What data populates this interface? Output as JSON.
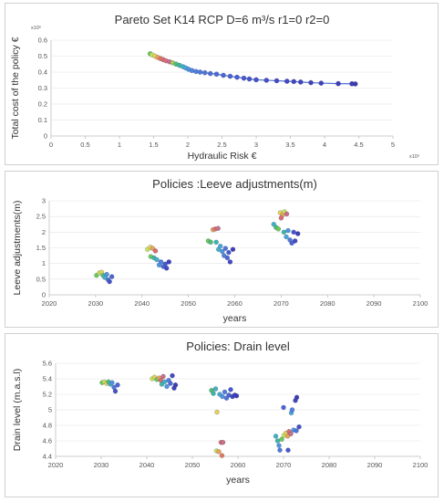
{
  "chart_data": [
    {
      "type": "scatter",
      "title": "Pareto Set K14 RCP D=6 m³/s r1=0 r2=0",
      "xlabel": "Hydraulic Risk €",
      "ylabel": "Total cost of the policy  €",
      "x_multiplier": "x10⁶",
      "y_multiplier": "x10⁶",
      "xlim": [
        0,
        5
      ],
      "ylim": [
        0,
        0.6
      ],
      "xticks": [
        "0",
        "0.5",
        "1",
        "1.5",
        "2",
        "2.5",
        "3",
        "3.5",
        "4",
        "4.5",
        "5"
      ],
      "yticks": [
        "0",
        "0.1",
        "0.2",
        "0.3",
        "0.4",
        "0.5",
        "0.6"
      ],
      "line_color": "#4a6fd6",
      "points": [
        {
          "x": 1.45,
          "y": 0.515,
          "c": "#6acb5a"
        },
        {
          "x": 1.48,
          "y": 0.508,
          "c": "#c6e35a"
        },
        {
          "x": 1.52,
          "y": 0.5,
          "c": "#e3d35a"
        },
        {
          "x": 1.56,
          "y": 0.492,
          "c": "#e8a358"
        },
        {
          "x": 1.6,
          "y": 0.485,
          "c": "#e07a5a"
        },
        {
          "x": 1.64,
          "y": 0.478,
          "c": "#d96d70"
        },
        {
          "x": 1.68,
          "y": 0.471,
          "c": "#d8707e"
        },
        {
          "x": 1.73,
          "y": 0.465,
          "c": "#c96f86"
        },
        {
          "x": 1.78,
          "y": 0.458,
          "c": "#9fc95b"
        },
        {
          "x": 1.83,
          "y": 0.45,
          "c": "#4fbd76"
        },
        {
          "x": 1.88,
          "y": 0.442,
          "c": "#3fb6a5"
        },
        {
          "x": 1.93,
          "y": 0.434,
          "c": "#44b0c5"
        },
        {
          "x": 1.97,
          "y": 0.426,
          "c": "#49a6d6"
        },
        {
          "x": 2.01,
          "y": 0.418,
          "c": "#4d95dd"
        },
        {
          "x": 2.06,
          "y": 0.41,
          "c": "#4f87dc"
        },
        {
          "x": 2.12,
          "y": 0.404,
          "c": "#4f80da"
        },
        {
          "x": 2.18,
          "y": 0.4,
          "c": "#4f7ad8"
        },
        {
          "x": 2.25,
          "y": 0.396,
          "c": "#4e76d6"
        },
        {
          "x": 2.33,
          "y": 0.391,
          "c": "#4c6fd4"
        },
        {
          "x": 2.42,
          "y": 0.387,
          "c": "#4b6ad2"
        },
        {
          "x": 2.52,
          "y": 0.38,
          "c": "#4a66d0"
        },
        {
          "x": 2.62,
          "y": 0.374,
          "c": "#4962ce"
        },
        {
          "x": 2.72,
          "y": 0.368,
          "c": "#485ecc"
        },
        {
          "x": 2.82,
          "y": 0.362,
          "c": "#4759ca"
        },
        {
          "x": 2.9,
          "y": 0.357,
          "c": "#4655c8"
        },
        {
          "x": 3.0,
          "y": 0.352,
          "c": "#4652c6"
        },
        {
          "x": 3.15,
          "y": 0.349,
          "c": "#454fc4"
        },
        {
          "x": 3.3,
          "y": 0.346,
          "c": "#444cc2"
        },
        {
          "x": 3.45,
          "y": 0.343,
          "c": "#4349c0"
        },
        {
          "x": 3.55,
          "y": 0.341,
          "c": "#4246be"
        },
        {
          "x": 3.65,
          "y": 0.338,
          "c": "#4144bc"
        },
        {
          "x": 3.8,
          "y": 0.334,
          "c": "#4042ba"
        },
        {
          "x": 3.95,
          "y": 0.331,
          "c": "#3f40b8"
        },
        {
          "x": 4.2,
          "y": 0.328,
          "c": "#3e3eb6"
        },
        {
          "x": 4.4,
          "y": 0.327,
          "c": "#3d3cb4"
        },
        {
          "x": 4.45,
          "y": 0.326,
          "c": "#3c3ab2"
        }
      ]
    },
    {
      "type": "scatter",
      "title": "Policies :Leeve adjustments(m)",
      "xlabel": "years",
      "ylabel": "Leeve adjustments(m)",
      "xlim": [
        2020,
        2100
      ],
      "ylim": [
        0,
        3
      ],
      "xticks": [
        "2020",
        "2030",
        "2040",
        "2050",
        "2060",
        "2070",
        "2080",
        "2090",
        "2100"
      ],
      "yticks": [
        "0",
        "0.5",
        "1",
        "1.5",
        "2",
        "2.5",
        "3"
      ],
      "points": [
        {
          "x": 2030.2,
          "y": 0.62,
          "c": "#6acb5a"
        },
        {
          "x": 2030.8,
          "y": 0.7,
          "c": "#c6e35a"
        },
        {
          "x": 2031.3,
          "y": 0.72,
          "c": "#e3d35a"
        },
        {
          "x": 2031.6,
          "y": 0.62,
          "c": "#4fbd76"
        },
        {
          "x": 2032.0,
          "y": 0.55,
          "c": "#44b0c5"
        },
        {
          "x": 2032.4,
          "y": 0.65,
          "c": "#4d95dd"
        },
        {
          "x": 2032.7,
          "y": 0.48,
          "c": "#4f7ad8"
        },
        {
          "x": 2033.0,
          "y": 0.42,
          "c": "#4652c6"
        },
        {
          "x": 2033.5,
          "y": 0.58,
          "c": "#4a66d0"
        },
        {
          "x": 2041.2,
          "y": 1.45,
          "c": "#c6e35a"
        },
        {
          "x": 2041.8,
          "y": 1.52,
          "c": "#e3d35a"
        },
        {
          "x": 2042.3,
          "y": 1.48,
          "c": "#e8a358"
        },
        {
          "x": 2042.9,
          "y": 1.4,
          "c": "#d96d70"
        },
        {
          "x": 2041.9,
          "y": 1.22,
          "c": "#6acb5a"
        },
        {
          "x": 2042.6,
          "y": 1.18,
          "c": "#3fb6a5"
        },
        {
          "x": 2043.2,
          "y": 1.12,
          "c": "#44b0c5"
        },
        {
          "x": 2043.7,
          "y": 0.95,
          "c": "#4d95dd"
        },
        {
          "x": 2044.1,
          "y": 1.05,
          "c": "#4f80da"
        },
        {
          "x": 2044.6,
          "y": 0.9,
          "c": "#4b6ad2"
        },
        {
          "x": 2045.0,
          "y": 0.98,
          "c": "#4759ca"
        },
        {
          "x": 2045.3,
          "y": 0.85,
          "c": "#4349c0"
        },
        {
          "x": 2045.8,
          "y": 1.05,
          "c": "#3f40b8"
        },
        {
          "x": 2054.3,
          "y": 1.72,
          "c": "#6acb5a"
        },
        {
          "x": 2054.8,
          "y": 1.68,
          "c": "#4fbd76"
        },
        {
          "x": 2055.3,
          "y": 2.08,
          "c": "#e8a358"
        },
        {
          "x": 2055.8,
          "y": 2.1,
          "c": "#d96d70"
        },
        {
          "x": 2056.4,
          "y": 2.12,
          "c": "#c96f86"
        },
        {
          "x": 2056.0,
          "y": 1.68,
          "c": "#3fb6a5"
        },
        {
          "x": 2056.5,
          "y": 1.45,
          "c": "#44b0c5"
        },
        {
          "x": 2056.9,
          "y": 1.55,
          "c": "#49a6d6"
        },
        {
          "x": 2057.3,
          "y": 1.38,
          "c": "#4d95dd"
        },
        {
          "x": 2057.7,
          "y": 1.25,
          "c": "#4f80da"
        },
        {
          "x": 2058.0,
          "y": 1.48,
          "c": "#4e76d6"
        },
        {
          "x": 2058.4,
          "y": 1.18,
          "c": "#4a66d0"
        },
        {
          "x": 2058.7,
          "y": 1.35,
          "c": "#4759ca"
        },
        {
          "x": 2059.0,
          "y": 1.05,
          "c": "#4349c0"
        },
        {
          "x": 2059.6,
          "y": 1.45,
          "c": "#3e3eb6"
        },
        {
          "x": 2068.4,
          "y": 2.25,
          "c": "#44b0c5"
        },
        {
          "x": 2068.9,
          "y": 2.15,
          "c": "#4fbd76"
        },
        {
          "x": 2069.4,
          "y": 2.1,
          "c": "#6acb5a"
        },
        {
          "x": 2069.8,
          "y": 2.62,
          "c": "#e3d35a"
        },
        {
          "x": 2070.3,
          "y": 2.55,
          "c": "#e8a358"
        },
        {
          "x": 2070.0,
          "y": 2.45,
          "c": "#d96d70"
        },
        {
          "x": 2070.7,
          "y": 2.65,
          "c": "#c6e35a"
        },
        {
          "x": 2071.2,
          "y": 2.58,
          "c": "#c96f86"
        },
        {
          "x": 2070.6,
          "y": 2.0,
          "c": "#3fb6a5"
        },
        {
          "x": 2071.1,
          "y": 1.85,
          "c": "#49a6d6"
        },
        {
          "x": 2071.5,
          "y": 2.05,
          "c": "#4d95dd"
        },
        {
          "x": 2071.9,
          "y": 1.75,
          "c": "#4f7ad8"
        },
        {
          "x": 2072.3,
          "y": 1.65,
          "c": "#4a66d0"
        },
        {
          "x": 2072.7,
          "y": 2.0,
          "c": "#4759ca"
        },
        {
          "x": 2073.0,
          "y": 1.72,
          "c": "#4349c0"
        },
        {
          "x": 2073.6,
          "y": 1.95,
          "c": "#3e3eb6"
        }
      ]
    },
    {
      "type": "scatter",
      "title": "Policies: Drain level",
      "xlabel": "years",
      "ylabel": "Drain level (m.a.s.l)",
      "xlim": [
        2020,
        2100
      ],
      "ylim": [
        4.4,
        5.6
      ],
      "xticks": [
        "2020",
        "2030",
        "2040",
        "2050",
        "2060",
        "2070",
        "2080",
        "2090",
        "2100"
      ],
      "yticks": [
        "4.4",
        "4.6",
        "4.8",
        "5",
        "5.2",
        "5.4",
        "5.6"
      ],
      "points": [
        {
          "x": 2030.2,
          "y": 5.35,
          "c": "#6acb5a"
        },
        {
          "x": 2030.7,
          "y": 5.36,
          "c": "#c6e35a"
        },
        {
          "x": 2031.2,
          "y": 5.34,
          "c": "#e3d35a"
        },
        {
          "x": 2031.6,
          "y": 5.36,
          "c": "#4fbd76"
        },
        {
          "x": 2032.0,
          "y": 5.33,
          "c": "#44b0c5"
        },
        {
          "x": 2032.4,
          "y": 5.35,
          "c": "#4d95dd"
        },
        {
          "x": 2032.8,
          "y": 5.29,
          "c": "#4f7ad8"
        },
        {
          "x": 2033.1,
          "y": 5.24,
          "c": "#4652c6"
        },
        {
          "x": 2033.6,
          "y": 5.32,
          "c": "#4a66d0"
        },
        {
          "x": 2041.2,
          "y": 5.4,
          "c": "#c6e35a"
        },
        {
          "x": 2041.7,
          "y": 5.42,
          "c": "#e3d35a"
        },
        {
          "x": 2042.2,
          "y": 5.39,
          "c": "#6acb5a"
        },
        {
          "x": 2042.7,
          "y": 5.41,
          "c": "#e8a358"
        },
        {
          "x": 2043.1,
          "y": 5.38,
          "c": "#d96d70"
        },
        {
          "x": 2043.6,
          "y": 5.43,
          "c": "#c96f86"
        },
        {
          "x": 2043.3,
          "y": 5.33,
          "c": "#3fb6a5"
        },
        {
          "x": 2043.9,
          "y": 5.36,
          "c": "#44b0c5"
        },
        {
          "x": 2044.4,
          "y": 5.3,
          "c": "#4d95dd"
        },
        {
          "x": 2044.8,
          "y": 5.38,
          "c": "#4f80da"
        },
        {
          "x": 2045.2,
          "y": 5.34,
          "c": "#4b6ad2"
        },
        {
          "x": 2045.6,
          "y": 5.44,
          "c": "#4349c0"
        },
        {
          "x": 2046.0,
          "y": 5.28,
          "c": "#3f40b8"
        },
        {
          "x": 2046.3,
          "y": 5.32,
          "c": "#3e3eb6"
        },
        {
          "x": 2054.2,
          "y": 5.25,
          "c": "#4fbd76"
        },
        {
          "x": 2054.6,
          "y": 5.21,
          "c": "#3fb6a5"
        },
        {
          "x": 2055.1,
          "y": 5.27,
          "c": "#44b0c5"
        },
        {
          "x": 2055.4,
          "y": 4.97,
          "c": "#e3d35a"
        },
        {
          "x": 2055.3,
          "y": 4.47,
          "c": "#c6e35a"
        },
        {
          "x": 2055.8,
          "y": 4.46,
          "c": "#e8a358"
        },
        {
          "x": 2056.3,
          "y": 4.58,
          "c": "#d96d70"
        },
        {
          "x": 2056.7,
          "y": 4.58,
          "c": "#c96f86"
        },
        {
          "x": 2056.5,
          "y": 4.41,
          "c": "#e07a5a"
        },
        {
          "x": 2056.0,
          "y": 5.2,
          "c": "#49a6d6"
        },
        {
          "x": 2056.6,
          "y": 5.17,
          "c": "#4d95dd"
        },
        {
          "x": 2057.1,
          "y": 5.23,
          "c": "#4f80da"
        },
        {
          "x": 2057.5,
          "y": 5.15,
          "c": "#4e76d6"
        },
        {
          "x": 2058.0,
          "y": 5.19,
          "c": "#4a66d0"
        },
        {
          "x": 2058.4,
          "y": 5.26,
          "c": "#4759ca"
        },
        {
          "x": 2058.8,
          "y": 5.17,
          "c": "#4349c0"
        },
        {
          "x": 2059.3,
          "y": 5.19,
          "c": "#4044bc"
        },
        {
          "x": 2059.7,
          "y": 5.18,
          "c": "#3e3eb6"
        },
        {
          "x": 2068.3,
          "y": 4.66,
          "c": "#44b0c5"
        },
        {
          "x": 2068.7,
          "y": 4.6,
          "c": "#3fb6a5"
        },
        {
          "x": 2069.0,
          "y": 4.54,
          "c": "#4d95dd"
        },
        {
          "x": 2069.2,
          "y": 4.48,
          "c": "#4f7ad8"
        },
        {
          "x": 2069.6,
          "y": 4.62,
          "c": "#6acb5a"
        },
        {
          "x": 2070.0,
          "y": 5.03,
          "c": "#4a66d0"
        },
        {
          "x": 2070.1,
          "y": 4.67,
          "c": "#c6e35a"
        },
        {
          "x": 2070.5,
          "y": 4.7,
          "c": "#e3d35a"
        },
        {
          "x": 2070.9,
          "y": 4.66,
          "c": "#e8a358"
        },
        {
          "x": 2071.2,
          "y": 4.72,
          "c": "#d96d70"
        },
        {
          "x": 2071.6,
          "y": 4.69,
          "c": "#c96f86"
        },
        {
          "x": 2071.0,
          "y": 4.48,
          "c": "#4759ca"
        },
        {
          "x": 2071.7,
          "y": 4.96,
          "c": "#49a6d6"
        },
        {
          "x": 2071.9,
          "y": 5.0,
          "c": "#4f80da"
        },
        {
          "x": 2072.2,
          "y": 4.74,
          "c": "#4d95dd"
        },
        {
          "x": 2072.6,
          "y": 5.12,
          "c": "#4349c0"
        },
        {
          "x": 2072.8,
          "y": 4.73,
          "c": "#4e76d6"
        },
        {
          "x": 2072.9,
          "y": 5.16,
          "c": "#3e3eb6"
        },
        {
          "x": 2073.4,
          "y": 4.78,
          "c": "#4652c6"
        }
      ]
    }
  ]
}
